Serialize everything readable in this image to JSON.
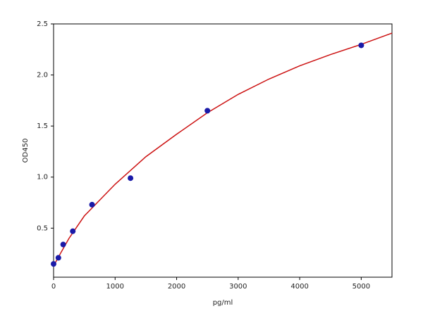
{
  "chart_data": {
    "type": "scatter",
    "x_label": "pg/ml",
    "y_label": "OD450",
    "xlim": [
      0,
      5500
    ],
    "xticks": [
      0,
      1000,
      2000,
      3000,
      4000,
      5000
    ],
    "ylim": [
      0.02,
      2.5
    ],
    "yticks": [
      0.5,
      {
        "value": 1,
        "label": "1.0"
      },
      1.5,
      {
        "value": 2,
        "label": "2.0"
      },
      2.5
    ],
    "series": [
      {
        "type": "line",
        "color": "#cc1111",
        "x": [
          0,
          100,
          250,
          500,
          1000,
          1500,
          2000,
          2500,
          3000,
          3500,
          4000,
          4500,
          5000,
          5500
        ],
        "values": [
          0.13,
          0.24,
          0.4,
          0.62,
          0.93,
          1.2,
          1.42,
          1.63,
          1.81,
          1.96,
          2.09,
          2.2,
          2.3,
          2.41
        ]
      },
      {
        "type": "scatter",
        "color": "#1a1aa8",
        "x": [
          0,
          78,
          156,
          312,
          625,
          1250,
          2500,
          5000
        ],
        "values": [
          0.15,
          0.21,
          0.34,
          0.47,
          0.73,
          0.99,
          1.65,
          2.29
        ]
      }
    ]
  }
}
